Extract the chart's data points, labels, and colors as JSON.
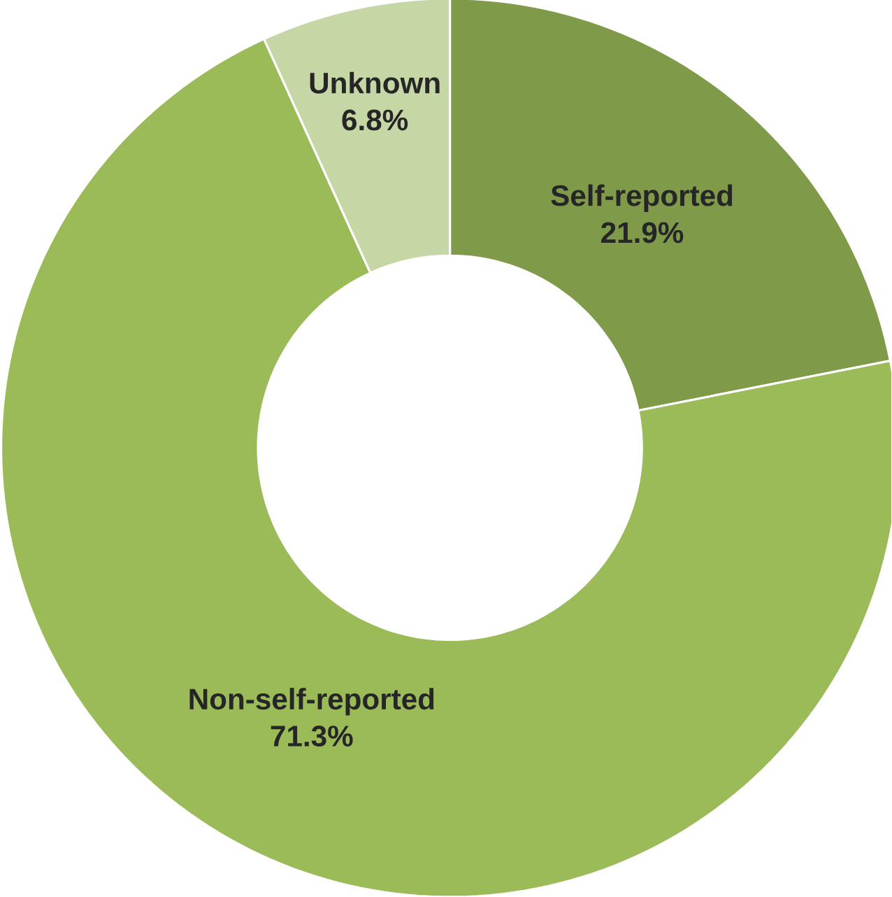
{
  "chart_data": {
    "type": "donut",
    "categories": [
      "Self-reported",
      "Non-self-reported",
      "Unknown"
    ],
    "values": [
      21.9,
      71.3,
      6.8
    ],
    "colors": [
      "#7f9a48",
      "#9bbb59",
      "#c6d7a6"
    ],
    "value_labels": [
      "21.9%",
      "71.3%",
      "6.8%"
    ]
  }
}
